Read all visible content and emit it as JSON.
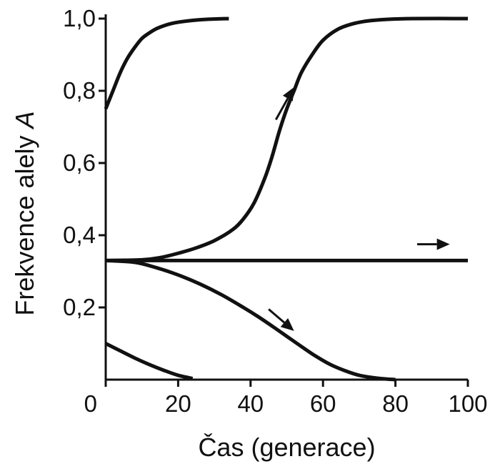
{
  "chart_data": {
    "type": "line",
    "xlabel": "Čas (generace)",
    "ylabel": "Frekvence alely ",
    "ylabel_italic": "A",
    "xlim": [
      0,
      100
    ],
    "ylim": [
      0,
      1.0
    ],
    "x_ticks": [
      {
        "value": 0,
        "label": "0"
      },
      {
        "value": 20,
        "label": "20"
      },
      {
        "value": 40,
        "label": "40"
      },
      {
        "value": 60,
        "label": "60"
      },
      {
        "value": 80,
        "label": "80"
      },
      {
        "value": 100,
        "label": "100"
      }
    ],
    "y_ticks": [
      {
        "value": 0.2,
        "label": "0,2"
      },
      {
        "value": 0.4,
        "label": "0,4"
      },
      {
        "value": 0.6,
        "label": "0,6"
      },
      {
        "value": 0.8,
        "label": "0,8"
      },
      {
        "value": 1.0,
        "label": "1,0"
      }
    ],
    "grid": false,
    "color": "#111111",
    "series": [
      {
        "points": [
          [
            0,
            0.75
          ],
          [
            2,
            0.8
          ],
          [
            4,
            0.85
          ],
          [
            6,
            0.89
          ],
          [
            8,
            0.92
          ],
          [
            10,
            0.945
          ],
          [
            12,
            0.96
          ],
          [
            14,
            0.972
          ],
          [
            16,
            0.98
          ],
          [
            18,
            0.986
          ],
          [
            20,
            0.99
          ],
          [
            24,
            0.995
          ],
          [
            28,
            0.998
          ],
          [
            34,
            1.0
          ]
        ]
      },
      {
        "points": [
          [
            0,
            0.33
          ],
          [
            10,
            0.332
          ],
          [
            15,
            0.338
          ],
          [
            20,
            0.35
          ],
          [
            25,
            0.365
          ],
          [
            30,
            0.385
          ],
          [
            35,
            0.415
          ],
          [
            38,
            0.445
          ],
          [
            41,
            0.49
          ],
          [
            44,
            0.56
          ],
          [
            46,
            0.62
          ],
          [
            48,
            0.69
          ],
          [
            50,
            0.75
          ],
          [
            52,
            0.8
          ],
          [
            54,
            0.85
          ],
          [
            57,
            0.9
          ],
          [
            60,
            0.94
          ],
          [
            64,
            0.97
          ],
          [
            68,
            0.985
          ],
          [
            72,
            0.993
          ],
          [
            78,
            0.998
          ],
          [
            85,
            1.0
          ],
          [
            100,
            1.0
          ]
        ]
      },
      {
        "points": [
          [
            0,
            0.33
          ],
          [
            100,
            0.33
          ]
        ]
      },
      {
        "points": [
          [
            0,
            0.33
          ],
          [
            8,
            0.325
          ],
          [
            14,
            0.31
          ],
          [
            20,
            0.29
          ],
          [
            26,
            0.265
          ],
          [
            32,
            0.235
          ],
          [
            38,
            0.2
          ],
          [
            42,
            0.175
          ],
          [
            46,
            0.148
          ],
          [
            50,
            0.12
          ],
          [
            54,
            0.092
          ],
          [
            58,
            0.065
          ],
          [
            62,
            0.042
          ],
          [
            66,
            0.025
          ],
          [
            70,
            0.012
          ],
          [
            75,
            0.004
          ],
          [
            80,
            0.0
          ]
        ]
      },
      {
        "points": [
          [
            0,
            0.1
          ],
          [
            4,
            0.08
          ],
          [
            8,
            0.06
          ],
          [
            12,
            0.042
          ],
          [
            16,
            0.026
          ],
          [
            20,
            0.012
          ],
          [
            24,
            0.003
          ]
        ]
      }
    ],
    "annotations": [
      {
        "type": "arrow",
        "from": [
          47,
          0.72
        ],
        "to": [
          52,
          0.81
        ]
      },
      {
        "type": "arrow",
        "from": [
          86,
          0.375
        ],
        "to": [
          95,
          0.375
        ]
      },
      {
        "type": "arrow",
        "from": [
          45,
          0.195
        ],
        "to": [
          52,
          0.135
        ]
      }
    ]
  }
}
